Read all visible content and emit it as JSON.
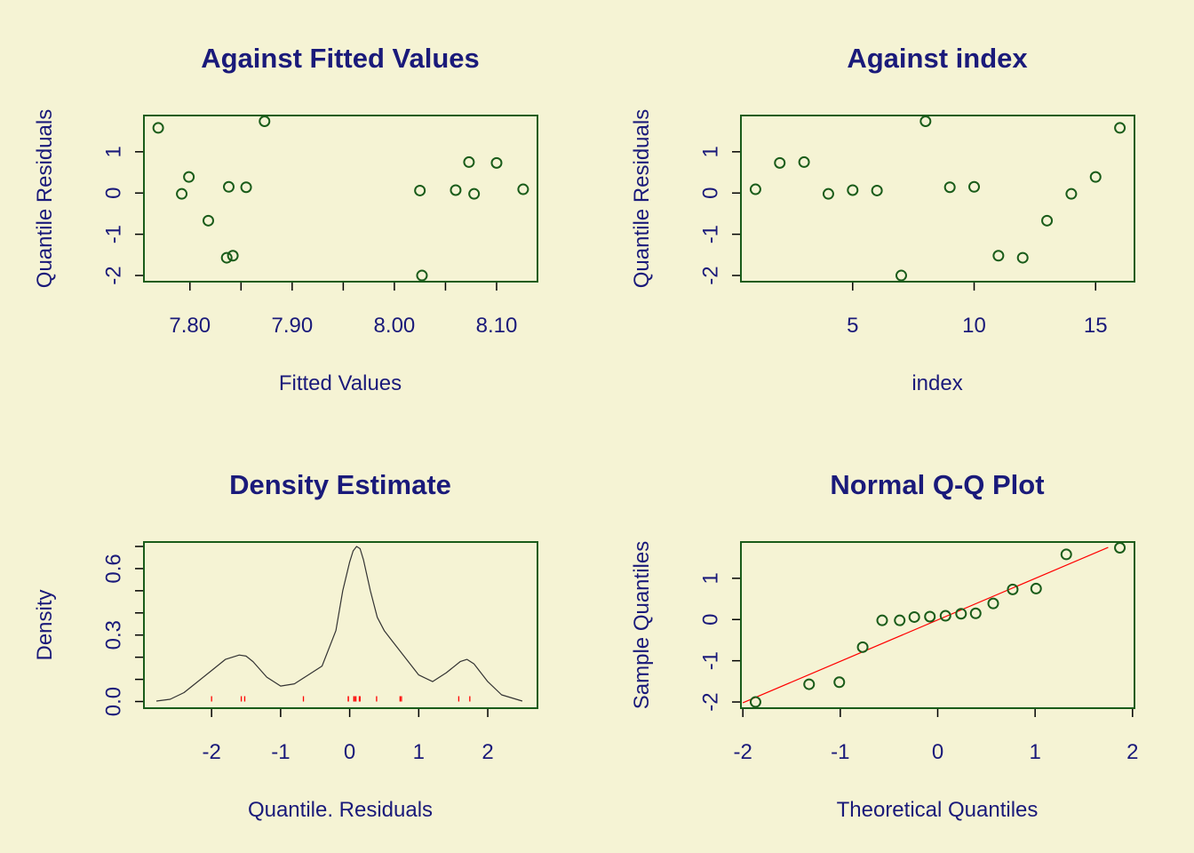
{
  "colors": {
    "background": "#f5f3d4",
    "text": "#1a1a7a",
    "frame": "#1a5c1a",
    "points": "#1a5c1a",
    "density_line": "#333333",
    "rug": "#ff0000",
    "qq_line": "#ff0000"
  },
  "chart_data": [
    {
      "type": "scatter",
      "title": "Against Fitted Values",
      "xlabel": "Fitted Values",
      "ylabel": "Quantile Residuals",
      "xlim": [
        7.755,
        8.14
      ],
      "ylim": [
        -2.15,
        1.88
      ],
      "xticks": [
        7.8,
        7.85,
        7.9,
        7.95,
        8.0,
        8.05,
        8.1
      ],
      "xtick_labels": [
        "7.80",
        "",
        "7.90",
        "",
        "8.00",
        "",
        "8.10"
      ],
      "yticks": [
        -2,
        -1,
        0,
        1
      ],
      "ytick_labels": [
        "-2",
        "-1",
        "0",
        "1"
      ],
      "x": [
        7.769,
        7.792,
        7.799,
        7.818,
        7.836,
        7.838,
        7.842,
        7.855,
        7.873,
        8.025,
        8.027,
        8.06,
        8.073,
        8.078,
        8.1,
        8.126
      ],
      "y": [
        1.58,
        -0.02,
        0.39,
        -0.67,
        -1.57,
        0.15,
        -1.52,
        0.14,
        1.74,
        0.06,
        -2.0,
        0.07,
        0.75,
        -0.02,
        0.73,
        0.09
      ]
    },
    {
      "type": "scatter",
      "title": "Against  index",
      "xlabel": "index",
      "ylabel": "Quantile Residuals",
      "xlim": [
        0.4,
        16.6
      ],
      "ylim": [
        -2.15,
        1.88
      ],
      "xticks": [
        5,
        10,
        15
      ],
      "xtick_labels": [
        "5",
        "10",
        "15"
      ],
      "yticks": [
        -2,
        -1,
        0,
        1
      ],
      "ytick_labels": [
        "-2",
        "-1",
        "0",
        "1"
      ],
      "x": [
        1,
        2,
        3,
        4,
        5,
        6,
        7,
        8,
        9,
        10,
        11,
        12,
        13,
        14,
        15,
        16
      ],
      "y": [
        0.09,
        0.73,
        0.75,
        -0.02,
        0.07,
        0.06,
        -2.0,
        1.74,
        0.14,
        0.15,
        -1.52,
        -1.57,
        -0.67,
        -0.02,
        0.39,
        1.58
      ]
    },
    {
      "type": "line",
      "title": "Density Estimate",
      "xlabel": "Quantile. Residuals",
      "ylabel": "Density",
      "xlim": [
        -2.98,
        2.72
      ],
      "ylim": [
        -0.03,
        0.72
      ],
      "xticks": [
        -2,
        -1,
        0,
        1,
        2
      ],
      "xtick_labels": [
        "-2",
        "-1",
        "0",
        "1",
        "2"
      ],
      "yticks": [
        0.0,
        0.1,
        0.2,
        0.3,
        0.4,
        0.5,
        0.6,
        0.7
      ],
      "ytick_labels": [
        "0.0",
        "",
        "",
        "0.3",
        "",
        "",
        "0.6",
        ""
      ],
      "x": [
        -2.8,
        -2.6,
        -2.4,
        -2.2,
        -2.0,
        -1.8,
        -1.6,
        -1.5,
        -1.4,
        -1.2,
        -1.0,
        -0.8,
        -0.6,
        -0.4,
        -0.2,
        -0.1,
        0.0,
        0.05,
        0.1,
        0.15,
        0.2,
        0.3,
        0.4,
        0.5,
        0.6,
        0.7,
        0.8,
        1.0,
        1.2,
        1.4,
        1.6,
        1.7,
        1.8,
        2.0,
        2.2,
        2.5
      ],
      "y": [
        0.002,
        0.01,
        0.04,
        0.09,
        0.14,
        0.19,
        0.21,
        0.205,
        0.18,
        0.11,
        0.07,
        0.08,
        0.12,
        0.16,
        0.32,
        0.5,
        0.63,
        0.68,
        0.7,
        0.69,
        0.64,
        0.5,
        0.38,
        0.32,
        0.28,
        0.24,
        0.2,
        0.12,
        0.09,
        0.13,
        0.18,
        0.19,
        0.17,
        0.09,
        0.03,
        0.002
      ],
      "rug": [
        -2.0,
        -1.57,
        -1.52,
        -0.67,
        -0.02,
        -0.02,
        0.06,
        0.07,
        0.09,
        0.14,
        0.15,
        0.39,
        0.73,
        0.75,
        1.58,
        1.74
      ]
    },
    {
      "type": "scatter",
      "title": "Normal Q-Q Plot",
      "xlabel": "Theoretical Quantiles",
      "ylabel": "Sample Quantiles",
      "xlim": [
        -2.02,
        2.02
      ],
      "ylim": [
        -2.15,
        1.88
      ],
      "xticks": [
        -2,
        -1,
        0,
        1,
        2
      ],
      "xtick_labels": [
        "-2",
        "-1",
        "0",
        "1",
        "2"
      ],
      "yticks": [
        -2,
        -1,
        0,
        1
      ],
      "ytick_labels": [
        "-2",
        "-1",
        "0",
        "1"
      ],
      "x": [
        -1.87,
        -1.32,
        -1.01,
        -0.77,
        -0.57,
        -0.39,
        -0.24,
        -0.08,
        0.08,
        0.24,
        0.39,
        0.57,
        0.77,
        1.01,
        1.32,
        1.87
      ],
      "y": [
        -2.0,
        -1.57,
        -1.52,
        -0.67,
        -0.02,
        -0.02,
        0.06,
        0.07,
        0.09,
        0.14,
        0.15,
        0.39,
        0.73,
        0.75,
        1.58,
        1.74
      ],
      "reference_line": {
        "x": [
          -2.0,
          1.75
        ],
        "y": [
          -2.02,
          1.75
        ]
      }
    }
  ]
}
